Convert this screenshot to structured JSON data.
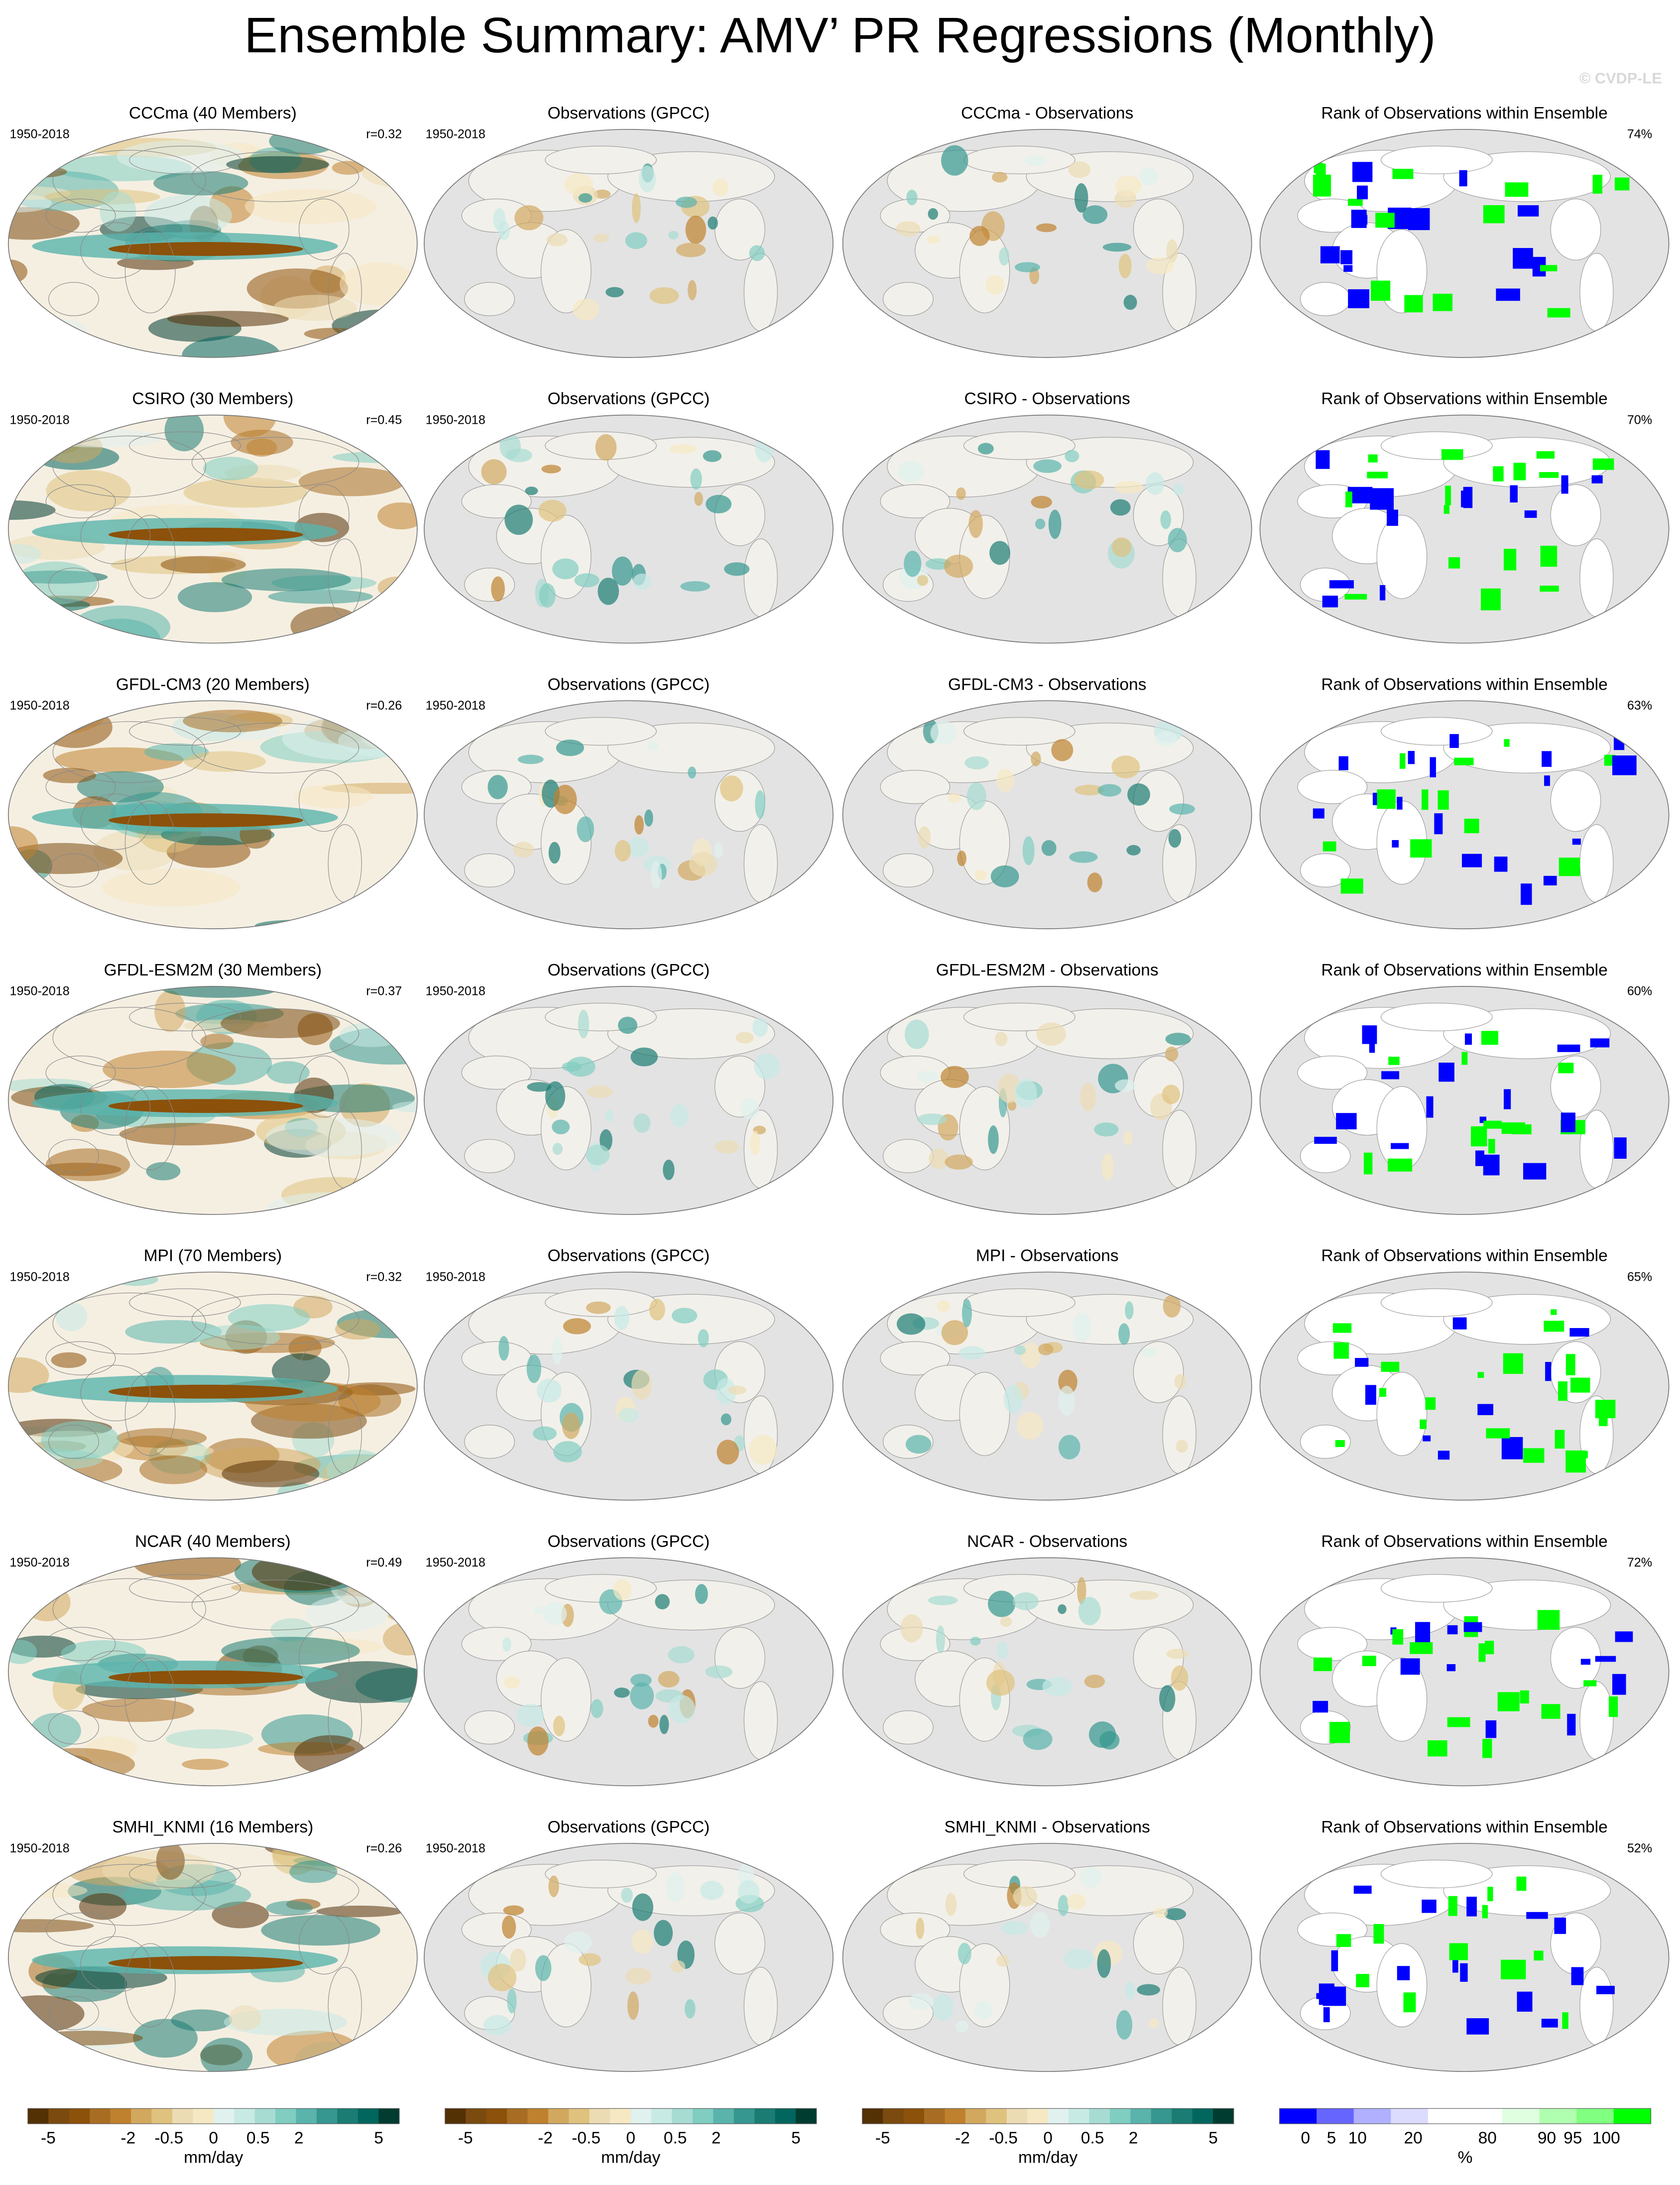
{
  "header": {
    "title": "Ensemble Summary: AMV’ PR Regressions (Monthly)",
    "watermark": "© CVDP-LE"
  },
  "rows": [
    {
      "model": {
        "title": "CCCma (40 Members)",
        "period": "1950-2018",
        "r": "r=0.32"
      },
      "obs": {
        "title": "Observations (GPCC)",
        "period": "1950-2018"
      },
      "diff": {
        "title": "CCCma - Observations"
      },
      "rank": {
        "title": "Rank of Observations within Ensemble",
        "percent": "74%"
      }
    },
    {
      "model": {
        "title": "CSIRO (30 Members)",
        "period": "1950-2018",
        "r": "r=0.45"
      },
      "obs": {
        "title": "Observations (GPCC)",
        "period": "1950-2018"
      },
      "diff": {
        "title": "CSIRO - Observations"
      },
      "rank": {
        "title": "Rank of Observations within Ensemble",
        "percent": "70%"
      }
    },
    {
      "model": {
        "title": "GFDL-CM3 (20 Members)",
        "period": "1950-2018",
        "r": "r=0.26"
      },
      "obs": {
        "title": "Observations (GPCC)",
        "period": "1950-2018"
      },
      "diff": {
        "title": "GFDL-CM3 - Observations"
      },
      "rank": {
        "title": "Rank of Observations within Ensemble",
        "percent": "63%"
      }
    },
    {
      "model": {
        "title": "GFDL-ESM2M (30 Members)",
        "period": "1950-2018",
        "r": "r=0.37"
      },
      "obs": {
        "title": "Observations (GPCC)",
        "period": "1950-2018"
      },
      "diff": {
        "title": "GFDL-ESM2M - Observations"
      },
      "rank": {
        "title": "Rank of Observations within Ensemble",
        "percent": "60%"
      }
    },
    {
      "model": {
        "title": "MPI (70 Members)",
        "period": "1950-2018",
        "r": "r=0.32"
      },
      "obs": {
        "title": "Observations (GPCC)",
        "period": "1950-2018"
      },
      "diff": {
        "title": "MPI - Observations"
      },
      "rank": {
        "title": "Rank of Observations within Ensemble",
        "percent": "65%"
      }
    },
    {
      "model": {
        "title": "NCAR (40 Members)",
        "period": "1950-2018",
        "r": "r=0.49"
      },
      "obs": {
        "title": "Observations (GPCC)",
        "period": "1950-2018"
      },
      "diff": {
        "title": "NCAR - Observations"
      },
      "rank": {
        "title": "Rank of Observations within Ensemble",
        "percent": "72%"
      }
    },
    {
      "model": {
        "title": "SMHI_KNMI (16 Members)",
        "period": "1950-2018",
        "r": "r=0.26"
      },
      "obs": {
        "title": "Observations (GPCC)",
        "period": "1950-2018"
      },
      "diff": {
        "title": "SMHI_KNMI - Observations"
      },
      "rank": {
        "title": "Rank of Observations within Ensemble",
        "percent": "52%"
      }
    }
  ],
  "colorbars": [
    {
      "labels": [
        "-5",
        "-2",
        "-0.5",
        "0",
        "0.5",
        "2",
        "5"
      ],
      "unit": "mm/day"
    },
    {
      "labels": [
        "-5",
        "-2",
        "-0.5",
        "0",
        "0.5",
        "2",
        "5"
      ],
      "unit": "mm/day"
    },
    {
      "labels": [
        "-5",
        "-2",
        "-0.5",
        "0",
        "0.5",
        "2",
        "5"
      ],
      "unit": "mm/day"
    },
    {
      "labels": [
        "0",
        "5",
        "10",
        "20",
        "80",
        "90",
        "95",
        "100"
      ],
      "unit": "%"
    }
  ]
}
